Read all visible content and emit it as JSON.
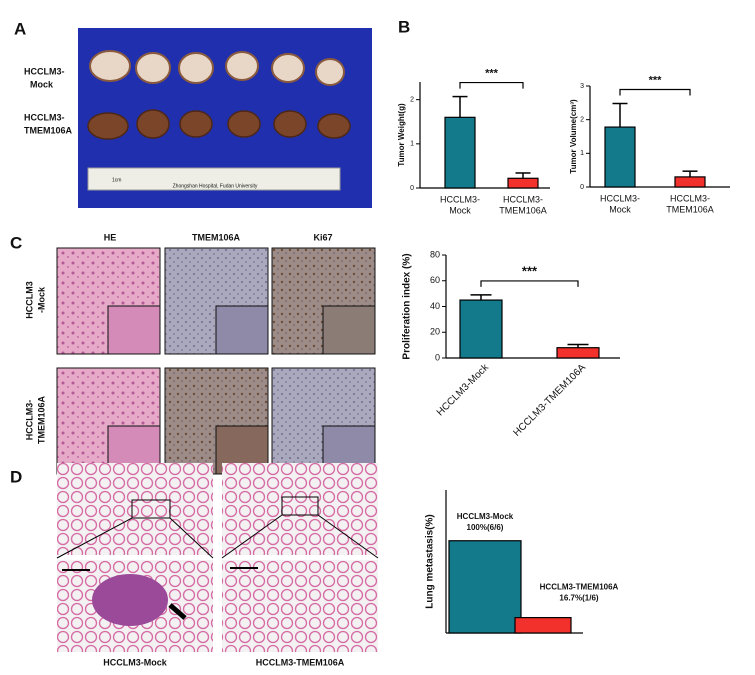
{
  "figure": {
    "panel_labels": [
      "A",
      "B",
      "C",
      "D"
    ],
    "panel_a": {
      "row_labels": [
        [
          "HCCLM3-",
          "Mock"
        ],
        [
          "HCCLM3-",
          "TMEM106A"
        ]
      ],
      "ruler_unit": "1cm",
      "ruler_text": "Zhongshan Hospital, Fudan University"
    },
    "panel_c": {
      "column_labels": [
        "HE",
        "TMEM106A",
        "Ki67"
      ],
      "row_labels": [
        [
          "HCCLM3",
          "-Mock"
        ],
        [
          "HCCLM3-",
          "TMEM106A"
        ]
      ]
    },
    "panel_d": {
      "captions": [
        "HCCLM3-Mock",
        "HCCLM3-TMEM106A"
      ]
    }
  },
  "chart_data": [
    {
      "type": "bar",
      "ylabel": "Tumor Weight(g)",
      "categories": [
        [
          "HCCLM3-",
          "Mock"
        ],
        [
          "HCCLM3-",
          "TMEM106A"
        ]
      ],
      "values": [
        1.6,
        0.22
      ],
      "errors": [
        0.47,
        0.12
      ],
      "colors": [
        "#137a8c",
        "#f2302c"
      ],
      "ylim": [
        0,
        2.4
      ],
      "yticks": [
        0,
        1,
        2
      ],
      "annotation": "***"
    },
    {
      "type": "bar",
      "ylabel": "Tumor Volume(cm³)",
      "categories": [
        [
          "HCCLM3-",
          "Mock"
        ],
        [
          "HCCLM3-",
          "TMEM106A"
        ]
      ],
      "values": [
        1.78,
        0.3
      ],
      "errors": [
        0.7,
        0.17
      ],
      "colors": [
        "#137a8c",
        "#f2302c"
      ],
      "ylim": [
        0,
        3
      ],
      "yticks": [
        0,
        1,
        2,
        3
      ],
      "annotation": "***"
    },
    {
      "type": "bar",
      "ylabel": "Proliferation index (%)",
      "categories": [
        "HCCLM3-Mock",
        "HCCLM3-TMEM106A"
      ],
      "values": [
        45,
        8
      ],
      "errors": [
        4,
        2.5
      ],
      "colors": [
        "#137a8c",
        "#f2302c"
      ],
      "ylim": [
        0,
        80
      ],
      "yticks": [
        0,
        20,
        40,
        60,
        80
      ],
      "annotation": "***",
      "rotate_labels": true
    },
    {
      "type": "bar",
      "ylabel": "Lung metastasis(%)",
      "categories": [
        "HCCLM3-Mock",
        "HCCLM3-TMEM106A"
      ],
      "values": [
        100,
        16.7
      ],
      "value_labels": [
        "100%(6/6)",
        "16.7%(1/6)"
      ],
      "colors": [
        "#137a8c",
        "#f2302c"
      ],
      "ylim": [
        0,
        155
      ]
    }
  ]
}
